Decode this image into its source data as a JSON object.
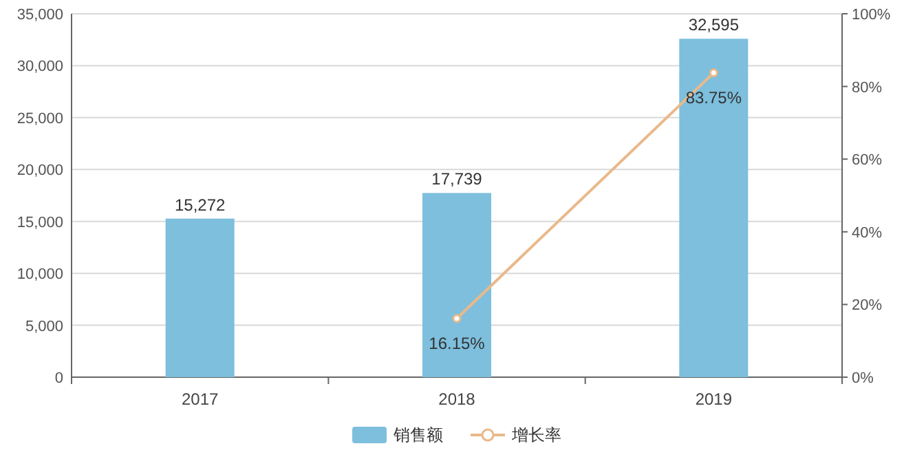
{
  "chart_data": {
    "type": "bar",
    "categories": [
      "2017",
      "2018",
      "2019"
    ],
    "series": [
      {
        "name": "销售额",
        "color": "#7dbfdd",
        "values": [
          15272,
          17739,
          32595
        ],
        "value_labels": [
          "15,272",
          "17,739",
          "32,595"
        ]
      },
      {
        "name": "增长率",
        "type": "line",
        "axis": "y2",
        "color": "#e9b98b",
        "values": [
          null,
          16.15,
          83.75
        ],
        "value_labels": [
          null,
          "16.15%",
          "83.75%"
        ]
      }
    ],
    "ylim": [
      0,
      35000
    ],
    "yticks": [
      {
        "value": 0,
        "label": "0"
      },
      {
        "value": 5000,
        "label": "5,000"
      },
      {
        "value": 10000,
        "label": "10,000"
      },
      {
        "value": 15000,
        "label": "15,000"
      },
      {
        "value": 20000,
        "label": "20,000"
      },
      {
        "value": 25000,
        "label": "25,000"
      },
      {
        "value": 30000,
        "label": "30,000"
      },
      {
        "value": 35000,
        "label": "35,000"
      }
    ],
    "y2lim": [
      0,
      100
    ],
    "y2ticks": [
      {
        "value": 0,
        "label": "0%"
      },
      {
        "value": 20,
        "label": "20%"
      },
      {
        "value": 40,
        "label": "40%"
      },
      {
        "value": 60,
        "label": "60%"
      },
      {
        "value": 80,
        "label": "80%"
      },
      {
        "value": 100,
        "label": "100%"
      }
    ],
    "grid": "y",
    "legend": "bottom",
    "marker": "circle",
    "line_style": "solid"
  }
}
